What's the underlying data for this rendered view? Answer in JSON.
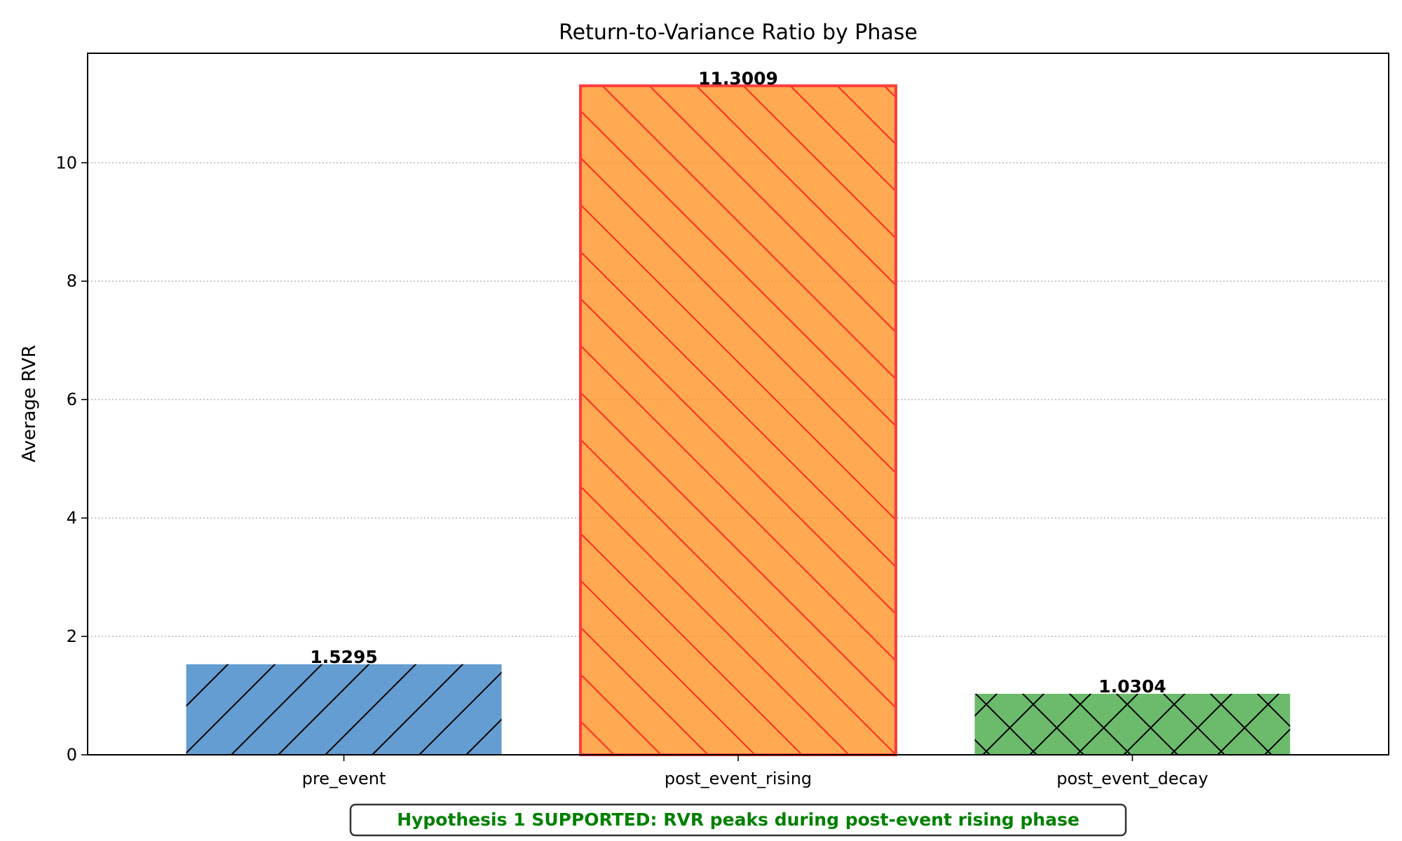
{
  "chart_data": {
    "type": "bar",
    "title": "Return-to-Variance Ratio by Phase",
    "xlabel": "",
    "ylabel": "Average RVR",
    "categories": [
      "pre_event",
      "post_event_rising",
      "post_event_decay"
    ],
    "values": [
      1.5295,
      11.3009,
      1.0304
    ],
    "value_labels": [
      "1.5295",
      "11.3009",
      "1.0304"
    ],
    "ylim": [
      0,
      11.85
    ],
    "yticks": [
      0,
      2,
      4,
      6,
      8,
      10
    ],
    "grid": "y-dotted",
    "bar_styles": [
      {
        "fill": "#3d85c6",
        "fill_opacity": 0.8,
        "edge": "none",
        "hatch": "forward-diagonal",
        "hatch_color": "#000000"
      },
      {
        "fill": "#ff8c1a",
        "fill_opacity": 0.75,
        "edge": "#ff3b3b",
        "hatch": "back-diagonal",
        "hatch_color": "#ff2a1a"
      },
      {
        "fill": "#43a843",
        "fill_opacity": 0.78,
        "edge": "none",
        "hatch": "cross",
        "hatch_color": "#000000"
      }
    ],
    "annotation": {
      "text": "Hypothesis 1 SUPPORTED: RVR peaks during post-event rising phase",
      "color": "#008000",
      "placement": "bottom-center"
    }
  }
}
